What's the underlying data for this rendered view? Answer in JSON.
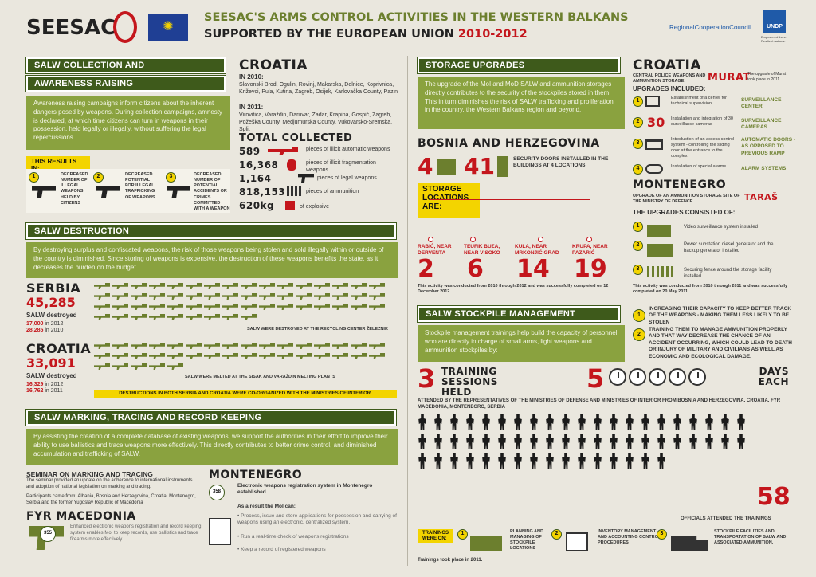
{
  "header": {
    "logo": "SEESAC",
    "title_line1": "SEESAC'S ARMS CONTROL ACTIVITIES IN THE WESTERN BALKANS",
    "title_line2": "SUPPORTED BY THE EUROPEAN UNION",
    "years": "2010-2012",
    "rcc": "RegionalCooperationCouncil",
    "undp": "UNDP",
    "undp_tag": "Empowered lives. Resilient nations."
  },
  "collection": {
    "title1": "SALW COLLECTION AND",
    "title2": "AWARENESS RAISING",
    "body": "Awareness raising campaigns inform citizens about the inherent dangers posed by weapons. During collection campaigns, amnesty is declared, at which time citizens can turn in weapons in their possession, held legally or illegally, without suffering the legal repercussions.",
    "results": "THIS RESULTS IN:",
    "r1": "DECREASED NUMBER OF ILLEGAL WEAPONS HELD BY CITIZENS",
    "r2": "DECREASED POTENTIAL FOR ILLEGAL TRAFFICKING OF WEAPONS",
    "r3": "DECREASED NUMBER OF POTENTIAL ACCIDENTS OR CRIMES COMMITTED WITH A WEAPON"
  },
  "croatia1": {
    "title": "CROATIA",
    "in2010": "IN 2010:",
    "list2010": "Slavonski Brod, Ogulin, Rovinj, Makarska, Delnice, Koprivnica, Križevci, Pula, Kutina, Zagreb, Osijek, Karlovačka County, Pazin",
    "in2011": "IN 2011:",
    "list2011": "Virovitica, Varaždin, Daruvar, Zadar, Krapina, Gospić, Zagreb, Požeška County, Medjumurska County, Vukovarsko-Sremska, Split",
    "total": "TOTAL COLLECTED",
    "n1": "589",
    "l1": "pieces of illicit automatic weapons",
    "n2": "16,368",
    "l2": "pieces of illicit fragmentation weapons",
    "n3": "1,164",
    "l3": "pieces of legal weapons",
    "n4": "818,153",
    "l4": "pieces of ammunition",
    "n5": "620kg",
    "l5": "of explosive"
  },
  "destruction": {
    "title": "SALW DESTRUCTION",
    "body": "By destroying surplus and confiscated weapons, the risk of those weapons being stolen and sold illegally within or outside of the country is diminished. Since storing of weapons is expensive, the destruction of these weapons benefits the state, as it decreases the burden on the budget.",
    "serbia": "SERBIA",
    "serbia_num": "45,285",
    "serbia_sub": "SALW destroyed",
    "s_a": "17,000",
    "s_a_y": "in 2012",
    "s_b": "28,285",
    "s_b_y": "in 2010",
    "serbia_note": "SALW WERE DESTROYED AT THE RECYCLING CENTER ŽELEZNIK",
    "croatia": "CROATIA",
    "croatia_num": "33,091",
    "croatia_sub": "SALW destroyed",
    "c_a": "16,329",
    "c_a_y": "in 2012",
    "c_b": "16,762",
    "c_b_y": "in 2011",
    "croatia_note": "SALW WERE MELTED AT THE SISAK AND VARAŽDIN MELTING PLANTS",
    "banner": "DESTRUCTIONS IN BOTH SERBIA AND CROATIA WERE CO-ORGANIZED WITH THE MINISTRIES OF INTERIOR."
  },
  "marking": {
    "title": "SALW MARKING, TRACING AND RECORD KEEPING",
    "body": "By assisting the creation of a complete database of existing weapons, we support the authorities in their effort to improve their ability to use ballistics and trace weapons more effectively. This directly contributes to better crime control, and diminished accumulation and trafficking of SALW.",
    "seminar_title": "SEMINAR ON MARKING AND TRACING",
    "seminar_body": "The seminar provided an update on the adherence to international instruments and adoption of national legislation on marking and tracing.",
    "participants": "Participants came from: Albania, Bosnia and Herzegovina, Croatia, Montenegro, Serbia and the former Yugoslav Republic of Macedonia",
    "fyr": "FYR MACEDONIA",
    "fyr_body": "Enhanced electronic weapons registration and record keeping system enables MoI to keep records, use ballistics and trace firearms more effectively.",
    "mne": "MONTENEGRO",
    "mne_body": "Electronic weapons registration system in Montenegro established.",
    "mne_result": "As a result the MoI can:",
    "mne_b1": "Process, issue and store applications for possession and carrying of weapons using an electronic, centralized system.",
    "mne_b2": "Run a real-time check of weapons registrations",
    "mne_b3": "Keep a record of registered weapons",
    "badge": "358",
    "badge2": "355"
  },
  "storage": {
    "title": "STORAGE UPGRADES",
    "body": "The upgrade of the MoI and MoD SALW and ammunition storages directly contributes to the security of the stockpiles stored in them. This in turn diminishes the risk of SALW trafficking and proliferation in the country, the Western Balkans region and beyond.",
    "bih": "BOSNIA AND HERZEGOVINA",
    "bih_n1": "4",
    "bih_n2": "41",
    "bih_doors": "SECURITY DOORS INSTALLED IN THE BUILDINGS AT 4 LOCATIONS",
    "storage_loc": "STORAGE LOCATIONS ARE:",
    "loc": [
      {
        "name": "RABIĆ, NEAR DERVENTA",
        "n": "2"
      },
      {
        "name": "TEUFIK BUZA, NEAR VISOKO",
        "n": "6"
      },
      {
        "name": "KULA, NEAR MRKONJIĆ GRAD",
        "n": "14"
      },
      {
        "name": "KRUPA, NEAR PAZARIĆ",
        "n": "19"
      }
    ],
    "bih_note": "This activity was conducted from 2010 through 2012 and was successfully completed on 12 December 2012.",
    "cro": "CROATIA",
    "cro_store": "CENTRAL POLICE WEAPONS AND AMMUNITION STORAGE",
    "murat": "MURAT",
    "murat_note": "The upgrade of Murat took place in 2011.",
    "upgrades": "UPGRADES INCLUDED:",
    "u1": "Establishment of a center for technical supervision",
    "u2": "Installation and integration of 30 surveillance cameras",
    "u3": "Introduction of an access control system - controlling the sliding door at the entrance to the complex",
    "u4": "Installation of special alarms.",
    "k1": "SURVEILLANCE CENTER",
    "k2": "SURVEILLANCE CAMERAS",
    "k3": "AUTOMATIC DOORS - AS OPPOSED TO PREVIOUS RAMP",
    "k4": "ALARM SYSTEMS",
    "cam": "30",
    "mne": "MONTENEGRO",
    "mne_sub": "UPGRADE OF AN AMMUNITION STORAGE SITE OF THE MINISTRY OF DEFENCE",
    "taras": "TARAŠ",
    "consisted": "THE UPGRADES CONSISTED OF:",
    "m1": "Video surveillance system installed",
    "m2": "Power substation diesel generator and the backup generator installed",
    "m3": "Securing fence around the storage facility installed",
    "mne_note": "This activity was conducted from 2010 through 2011 and was successfully completed on 20 May 2011."
  },
  "stockpile": {
    "title": "SALW STOCKPILE MANAGEMENT",
    "body": "Stockpile management trainings help build the capacity of personnel who are directly in charge of small arms, light weapons and ammunition stockpiles by:",
    "p1": "INCREASING THEIR CAPACITY TO KEEP BETTER TRACK OF THE WEAPONS - MAKING THEM LESS LIKELY TO BE STOLEN",
    "p2": "TRAINING THEM TO MANAGE AMMUNITION PROPERLY AND THAT WAY DECREASE THE CHANCE OF AN ACCIDENT OCCURRING, WHICH COULD LEAD TO DEATH OR INJURY OF MILITARY AND CIVILIANS AS WELL AS ECONOMIC AND ECOLOGICAL DAMAGE.",
    "n3": "3",
    "sessions": "TRAINING SESSIONS HELD",
    "n5": "5",
    "days": "DAYS EACH",
    "attended": "ATTENDED BY THE REPRESENTATIVES OF THE MINISTRIES OF DEFENSE AND MINISTRIES OF INTERIOR FROM BOSNIA AND HERZEGOVINA, CROATIA, FYR MACEDONIA, MONTENEGRO, SERBIA",
    "n58": "58",
    "officials": "OFFICIALS ATTENDED THE TRAININGS",
    "trainings_on": "TRAININGS WERE ON:",
    "t1": "PLANNING AND MANAGING OF STOCKPILE LOCATIONS",
    "t2": "INVENTORY MANAGEMENT AND ACCOUNTING CONTROL PROCEDURES",
    "t3": "STOCKPILE FACILITIES AND TRANSPORTATION OF SALW AND ASSOCIATED AMMUNITION.",
    "took": "Trainings took place in 2011."
  },
  "colors": {
    "green_dark": "#3e5a1b",
    "green_light": "#8aa23f",
    "red": "#c4161c",
    "yellow": "#f3d400"
  }
}
